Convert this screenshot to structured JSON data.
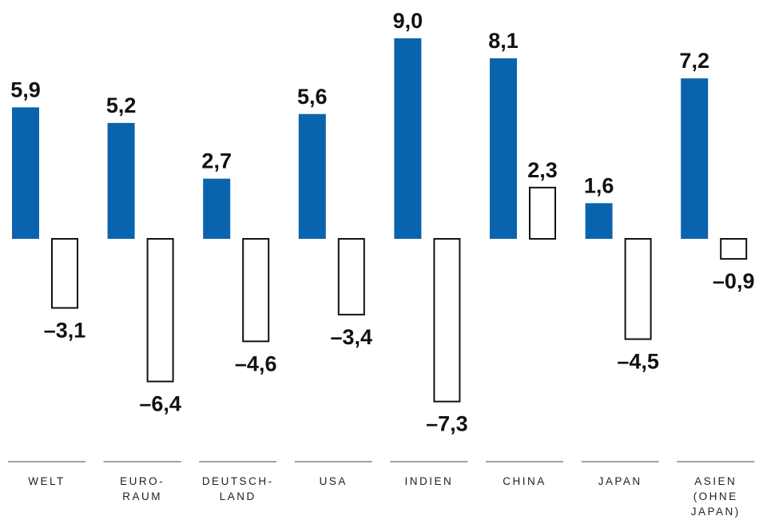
{
  "chart_data": {
    "type": "bar",
    "title": "",
    "xlabel": "",
    "ylabel": "",
    "categories": [
      [
        "WELT"
      ],
      [
        "EURO-",
        "RAUM"
      ],
      [
        "DEUTSCH-",
        "LAND"
      ],
      [
        "USA"
      ],
      [
        "INDIEN"
      ],
      [
        "CHINA"
      ],
      [
        "JAPAN"
      ],
      [
        "ASIEN",
        "(OHNE",
        "JAPAN)"
      ]
    ],
    "series": [
      {
        "values": [
          5.9,
          5.2,
          2.7,
          5.6,
          9.0,
          8.1,
          1.6,
          7.2
        ],
        "labels": [
          "5,9",
          "5,2",
          "2,7",
          "5,6",
          "9,0",
          "8,1",
          "1,6",
          "7,2"
        ],
        "color": "#0a64ad",
        "style": "filled"
      },
      {
        "values": [
          -3.1,
          -6.4,
          -4.6,
          -3.4,
          -7.3,
          2.3,
          -4.5,
          -0.9
        ],
        "labels": [
          "–3,1",
          "–6,4",
          "–4,6",
          "–3,4",
          "–7,3",
          "2,3",
          "–4,5",
          "–0,9"
        ],
        "color": "#111111",
        "style": "outline"
      }
    ],
    "ylim": [
      -7.3,
      9.0
    ],
    "grid": false,
    "legend": "none"
  }
}
